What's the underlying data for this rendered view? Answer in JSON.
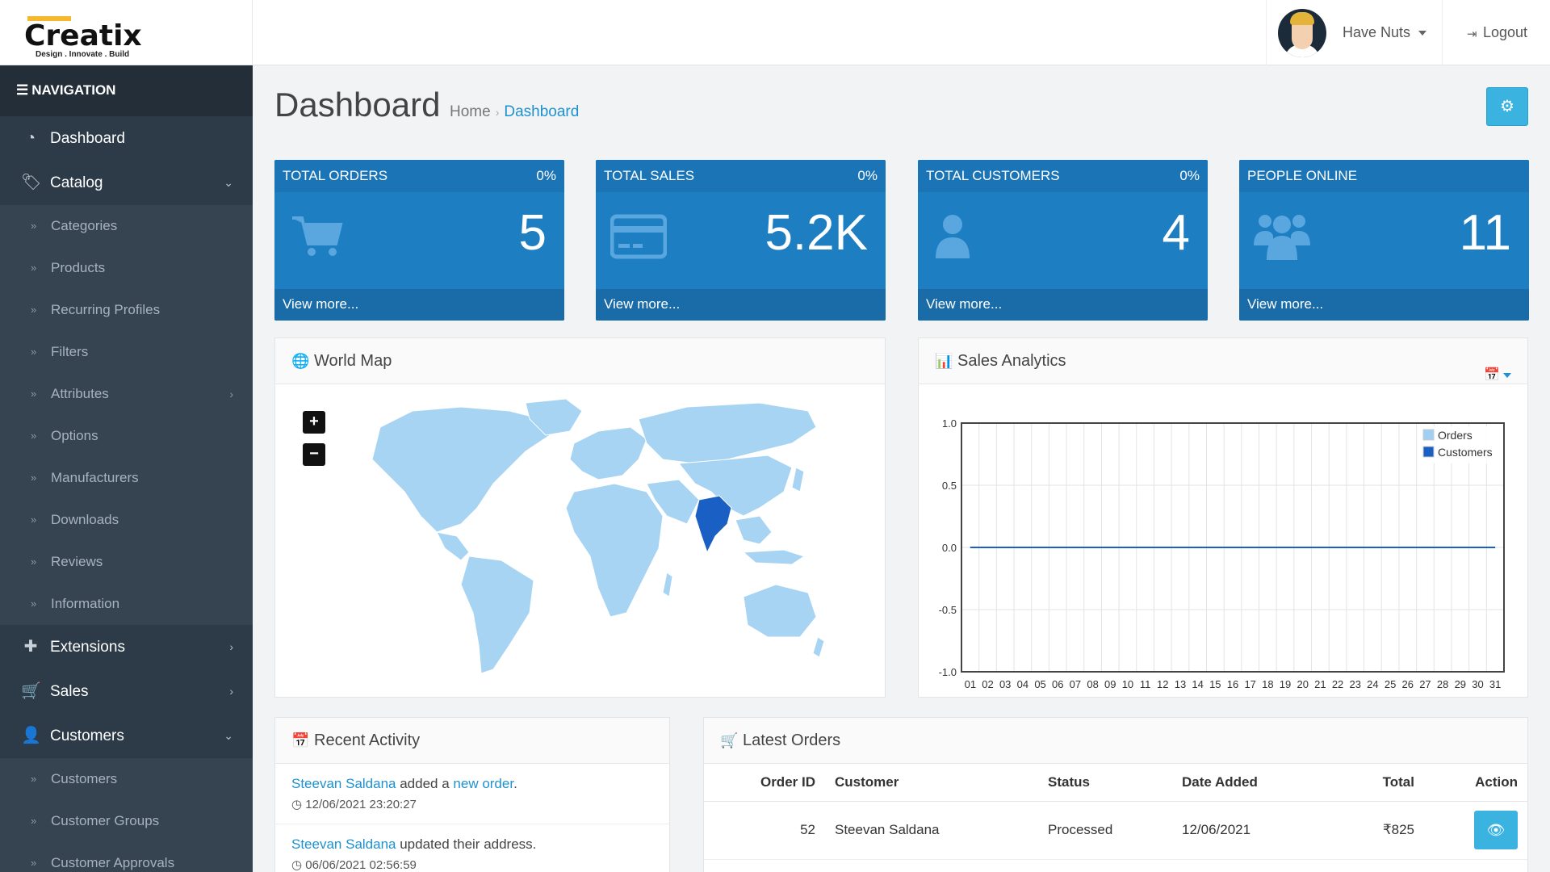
{
  "brand": {
    "name": "Creatix",
    "tagline": "Design . Innovate . Build",
    "accent": "#f5b82e"
  },
  "header": {
    "user_name": "Have Nuts",
    "logout_label": "Logout"
  },
  "nav": {
    "heading": "NAVIGATION",
    "items": [
      {
        "label": "Dashboard",
        "icon": "dashboard-icon"
      },
      {
        "label": "Catalog",
        "icon": "tags-icon",
        "expanded": true,
        "children": [
          "Categories",
          "Products",
          "Recurring Profiles",
          "Filters",
          "Attributes",
          "Options",
          "Manufacturers",
          "Downloads",
          "Reviews",
          "Information"
        ]
      },
      {
        "label": "Extensions",
        "icon": "puzzle-icon"
      },
      {
        "label": "Sales",
        "icon": "cart-icon"
      },
      {
        "label": "Customers",
        "icon": "user-icon",
        "expanded": true,
        "children": [
          "Customers",
          "Customer Groups",
          "Customer Approvals"
        ]
      }
    ]
  },
  "page": {
    "title": "Dashboard",
    "breadcrumb_home": "Home",
    "breadcrumb_current": "Dashboard"
  },
  "tiles": [
    {
      "title": "TOTAL ORDERS",
      "pct": "0%",
      "value": "5",
      "footer": "View more...",
      "icon": "cart-icon"
    },
    {
      "title": "TOTAL SALES",
      "pct": "0%",
      "value": "5.2K",
      "footer": "View more...",
      "icon": "credit-card-icon"
    },
    {
      "title": "TOTAL CUSTOMERS",
      "pct": "0%",
      "value": "4",
      "footer": "View more...",
      "icon": "user-icon"
    },
    {
      "title": "PEOPLE ONLINE",
      "pct": "",
      "value": "11",
      "footer": "View more...",
      "icon": "users-icon"
    }
  ],
  "world_map": {
    "title": "World Map",
    "zoom_in": "+",
    "zoom_out": "−",
    "highlight_color": "#1a5fc4",
    "base_color": "#a6d4f2"
  },
  "sales_analytics": {
    "title": "Sales Analytics",
    "chart_data": {
      "type": "line",
      "x": [
        "01",
        "02",
        "03",
        "04",
        "05",
        "06",
        "07",
        "08",
        "09",
        "10",
        "11",
        "12",
        "13",
        "14",
        "15",
        "16",
        "17",
        "18",
        "19",
        "20",
        "21",
        "22",
        "23",
        "24",
        "25",
        "26",
        "27",
        "28",
        "29",
        "30",
        "31"
      ],
      "ylim": [
        -1.0,
        1.0
      ],
      "y_ticks": [
        "1.0",
        "0.5",
        "0.0",
        "-0.5",
        "-1.0"
      ],
      "series": [
        {
          "name": "Orders",
          "color": "#9fd0f2",
          "values": [
            0,
            0,
            0,
            0,
            0,
            0,
            0,
            0,
            0,
            0,
            0,
            0,
            0,
            0,
            0,
            0,
            0,
            0,
            0,
            0,
            0,
            0,
            0,
            0,
            0,
            0,
            0,
            0,
            0,
            0,
            0
          ]
        },
        {
          "name": "Customers",
          "color": "#1a5fc4",
          "values": [
            0,
            0,
            0,
            0,
            0,
            0,
            0,
            0,
            0,
            0,
            0,
            0,
            0,
            0,
            0,
            0,
            0,
            0,
            0,
            0,
            0,
            0,
            0,
            0,
            0,
            0,
            0,
            0,
            0,
            0,
            0
          ]
        }
      ],
      "grid": true,
      "legend": "top-right"
    }
  },
  "recent_activity": {
    "title": "Recent Activity",
    "items": [
      {
        "actor": "Steevan Saldana",
        "text": " added a ",
        "link": "new order",
        "tail": ".",
        "time": "12/06/2021 23:20:27"
      },
      {
        "actor": "Steevan Saldana",
        "text": " updated their address.",
        "link": "",
        "tail": "",
        "time": "06/06/2021 02:56:59"
      }
    ]
  },
  "latest_orders": {
    "title": "Latest Orders",
    "columns": {
      "order_id": "Order ID",
      "customer": "Customer",
      "status": "Status",
      "date": "Date Added",
      "total": "Total",
      "action": "Action"
    },
    "rows": [
      {
        "order_id": "52",
        "customer": "Steevan Saldana",
        "status": "Processed",
        "date": "12/06/2021",
        "total": "₹825"
      }
    ]
  }
}
